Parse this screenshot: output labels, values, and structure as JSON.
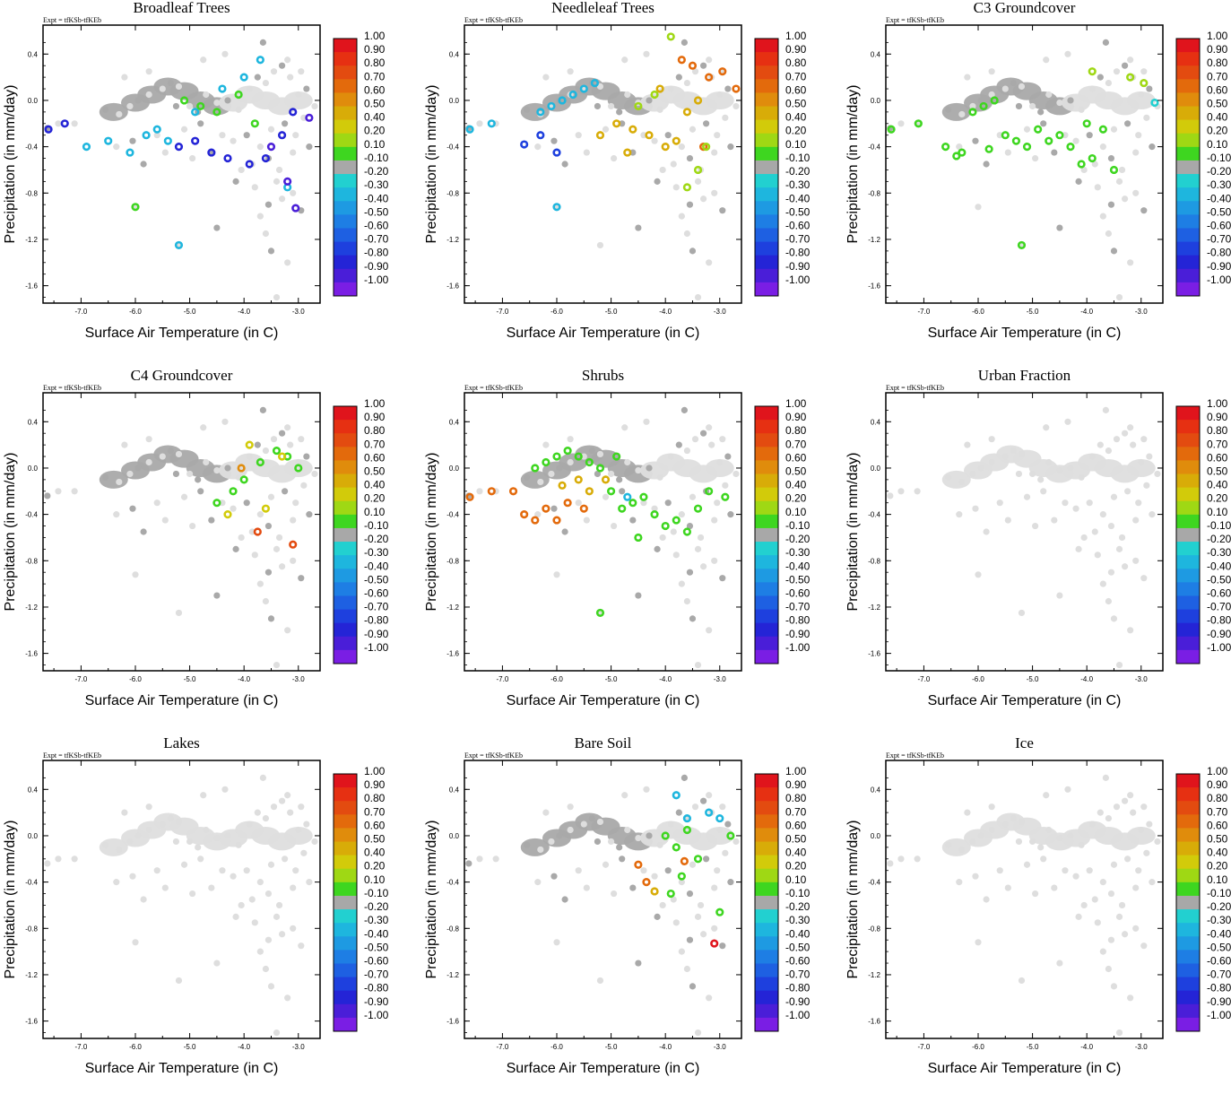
{
  "figure": {
    "expt_label": "Expt = tfKSb-tfKEb",
    "xlabel": "Surface Air Temperature (in C)",
    "ylabel": "Precipitation (in mm/day)"
  },
  "axes": {
    "xlim": [
      -7.7,
      -2.6
    ],
    "ylim": [
      -1.75,
      0.65
    ],
    "xticks": [
      -7.0,
      -6.0,
      -5.0,
      -4.0,
      -3.0
    ],
    "xtick_labels": [
      "-7.0",
      "-6.0",
      "-5.0",
      "-4.0",
      "-3.0"
    ],
    "yticks": [
      0.4,
      0.0,
      -0.4,
      -0.8,
      -1.2,
      -1.6
    ],
    "ytick_labels": [
      "0.4",
      "0.0",
      "-0.4",
      "-0.8",
      "-1.2",
      "-1.6"
    ]
  },
  "colorbar": {
    "labels": [
      "1.00",
      "0.90",
      "0.80",
      "0.70",
      "0.60",
      "0.50",
      "0.40",
      "0.20",
      "0.10",
      "-0.10",
      "-0.20",
      "-0.30",
      "-0.40",
      "-0.50",
      "-0.60",
      "-0.70",
      "-0.80",
      "-0.90",
      "-1.00"
    ],
    "colors": [
      "#e0141c",
      "#e63012",
      "#e34b10",
      "#e36a0c",
      "#e08c0c",
      "#d8ac08",
      "#d2cb0a",
      "#9fd814",
      "#3ed620",
      "#a8a8a8",
      "#22d0d0",
      "#1eb6de",
      "#1e9ae2",
      "#1e7ee4",
      "#1e60e2",
      "#1e40de",
      "#2424d6",
      "#4a1ed8",
      "#7a1ee4"
    ]
  },
  "base_points": {
    "description_free": true,
    "x": [
      -7.62,
      -7.42,
      -7.12,
      -6.55,
      -6.3,
      -6.1,
      -5.95,
      -5.75,
      -5.5,
      -5.35,
      -5.2,
      -5.0,
      -4.85,
      -4.7,
      -4.5,
      -4.3,
      -4.1,
      -3.9,
      -3.75,
      -3.6,
      -3.45,
      -3.3,
      -3.15,
      -3.0,
      -2.85,
      -2.7,
      -6.35,
      -6.05,
      -5.6,
      -5.1,
      -4.8,
      -4.4,
      -4.2,
      -3.95,
      -3.7,
      -3.5,
      -3.25,
      -3.05,
      -2.9,
      -5.85,
      -5.45,
      -4.95,
      -4.6,
      -4.05,
      -3.85,
      -3.55,
      -3.35,
      -3.1,
      -2.8,
      -6.2,
      -5.75,
      -5.25,
      -4.75,
      -4.35,
      -3.65,
      -3.2,
      -2.95,
      -4.15,
      -3.8,
      -3.4,
      -3.55,
      -3.3,
      -3.1,
      -2.95,
      -6.0,
      -5.2,
      -4.5,
      -3.7,
      -3.6,
      -3.5,
      -3.2,
      -3.4
    ],
    "y": [
      -0.24,
      -0.2,
      -0.2,
      -0.08,
      -0.12,
      -0.05,
      0.0,
      0.05,
      0.1,
      0.15,
      0.12,
      -0.05,
      -0.1,
      0.05,
      -0.02,
      0.0,
      -0.08,
      0.1,
      0.2,
      0.15,
      0.25,
      0.3,
      0.2,
      0.05,
      0.1,
      -0.05,
      -0.4,
      -0.35,
      -0.3,
      -0.25,
      -0.2,
      -0.3,
      -0.35,
      -0.3,
      -0.4,
      -0.25,
      -0.2,
      -0.3,
      -0.15,
      -0.55,
      -0.45,
      -0.5,
      -0.45,
      -0.6,
      -0.55,
      -0.5,
      -0.6,
      -0.45,
      -0.4,
      0.2,
      0.25,
      -0.05,
      0.35,
      0.4,
      0.5,
      0.35,
      0.25,
      -0.7,
      -0.75,
      -0.7,
      -0.9,
      -0.85,
      -0.8,
      -0.95,
      -0.92,
      -1.25,
      -1.1,
      -1.0,
      -1.15,
      -1.3,
      -1.4,
      -1.7
    ]
  },
  "chart_data": [
    {
      "type": "scatter",
      "title": "Broadleaf Trees",
      "xlabel": "Surface Air Temperature (in C)",
      "ylabel": "Precipitation (in mm/day)",
      "xlim": [
        -7.7,
        -2.6
      ],
      "ylim": [
        -1.75,
        0.65
      ],
      "series": [
        {
          "name": "-0.80",
          "color": "#2424d6",
          "x": [
            -7.6,
            -7.3,
            -5.2,
            -4.9,
            -4.6,
            -4.3,
            -3.9,
            -3.6,
            -3.3,
            -3.1
          ],
          "y": [
            -0.25,
            -0.2,
            -0.4,
            -0.35,
            -0.45,
            -0.5,
            -0.55,
            -0.5,
            -0.3,
            -0.1
          ]
        },
        {
          "name": "-0.30",
          "color": "#1eb6de",
          "x": [
            -6.9,
            -6.5,
            -6.1,
            -5.8,
            -5.6,
            -5.4,
            -5.2,
            -4.9,
            -4.4,
            -4.0,
            -3.7,
            -3.2
          ],
          "y": [
            -0.4,
            -0.35,
            -0.45,
            -0.3,
            -0.25,
            -0.35,
            -1.25,
            -0.1,
            0.1,
            0.2,
            0.35,
            -0.75
          ]
        },
        {
          "name": "0.10",
          "color": "#3ed620",
          "x": [
            -6.0,
            -5.1,
            -4.8,
            -4.5,
            -4.1,
            -3.8
          ],
          "y": [
            -0.92,
            0.0,
            -0.05,
            -0.1,
            0.05,
            -0.2
          ]
        },
        {
          "name": "-0.90",
          "color": "#4a1ed8",
          "x": [
            -3.5,
            -3.2,
            -3.05,
            -2.8
          ],
          "y": [
            -0.4,
            -0.7,
            -0.93,
            -0.15
          ]
        }
      ]
    },
    {
      "type": "scatter",
      "title": "Needleleaf Trees",
      "xlabel": "Surface Air Temperature (in C)",
      "ylabel": "Precipitation (in mm/day)",
      "xlim": [
        -7.7,
        -2.6
      ],
      "ylim": [
        -1.75,
        0.65
      ],
      "series": [
        {
          "name": "-0.30",
          "color": "#1eb6de",
          "x": [
            -7.6,
            -7.2,
            -6.3,
            -6.1,
            -5.9,
            -5.7,
            -5.5,
            -5.3,
            -6.0
          ],
          "y": [
            -0.25,
            -0.2,
            -0.1,
            -0.05,
            0.0,
            0.05,
            0.1,
            0.15,
            -0.92
          ]
        },
        {
          "name": "-0.70",
          "color": "#1e40de",
          "x": [
            -6.6,
            -6.3,
            -6.0
          ],
          "y": [
            -0.38,
            -0.3,
            -0.45
          ]
        },
        {
          "name": "0.50",
          "color": "#d8ac08",
          "x": [
            -5.2,
            -4.9,
            -4.6,
            -4.3,
            -4.0,
            -3.8,
            -3.6,
            -3.4,
            -4.7,
            -4.1
          ],
          "y": [
            -0.3,
            -0.2,
            -0.25,
            -0.3,
            -0.4,
            -0.35,
            -0.1,
            0.0,
            -0.45,
            0.1
          ]
        },
        {
          "name": "0.70",
          "color": "#e36a0c",
          "x": [
            -3.7,
            -3.5,
            -3.2,
            -2.95,
            -2.7,
            -3.3
          ],
          "y": [
            0.35,
            0.3,
            0.2,
            0.25,
            0.1,
            -0.4
          ]
        },
        {
          "name": "0.20",
          "color": "#9fd814",
          "x": [
            -4.5,
            -4.2,
            -3.9,
            -3.6,
            -3.4,
            -3.25
          ],
          "y": [
            -0.05,
            0.05,
            0.55,
            -0.75,
            -0.6,
            -0.4
          ]
        }
      ]
    },
    {
      "type": "scatter",
      "title": "C3 Groundcover",
      "xlabel": "Surface Air Temperature (in C)",
      "ylabel": "Precipitation (in mm/day)",
      "xlim": [
        -7.7,
        -2.6
      ],
      "ylim": [
        -1.75,
        0.65
      ],
      "series": [
        {
          "name": "0.10",
          "color": "#3ed620",
          "x": [
            -7.6,
            -7.1,
            -6.6,
            -6.3,
            -6.1,
            -5.9,
            -5.7,
            -5.5,
            -5.3,
            -5.1,
            -4.9,
            -4.7,
            -4.5,
            -4.3,
            -4.1,
            -3.9,
            -3.7,
            -3.5,
            -5.2,
            -6.4,
            -5.8,
            -4.0
          ],
          "y": [
            -0.25,
            -0.2,
            -0.4,
            -0.45,
            -0.1,
            -0.05,
            0.0,
            -0.3,
            -0.35,
            -0.4,
            -0.25,
            -0.35,
            -0.3,
            -0.4,
            -0.55,
            -0.5,
            -0.25,
            -0.6,
            -1.25,
            -0.48,
            -0.42,
            -0.2
          ]
        },
        {
          "name": "0.20",
          "color": "#9fd814",
          "x": [
            -3.9,
            -3.2,
            -2.95
          ],
          "y": [
            0.25,
            0.2,
            0.15
          ]
        },
        {
          "name": "-0.20",
          "color": "#22d0d0",
          "x": [
            -2.75
          ],
          "y": [
            -0.02
          ]
        }
      ]
    },
    {
      "type": "scatter",
      "title": "C4 Groundcover",
      "xlabel": "Surface Air Temperature (in C)",
      "ylabel": "Precipitation (in mm/day)",
      "xlim": [
        -7.7,
        -2.6
      ],
      "ylim": [
        -1.75,
        0.65
      ],
      "series": [
        {
          "name": "0.10",
          "color": "#3ed620",
          "x": [
            -4.5,
            -4.2,
            -4.0,
            -3.7,
            -3.4,
            -3.2,
            -3.0
          ],
          "y": [
            -0.3,
            -0.2,
            -0.1,
            0.05,
            0.15,
            0.1,
            0.0
          ]
        },
        {
          "name": "0.40",
          "color": "#d2cb0a",
          "x": [
            -4.3,
            -3.9,
            -3.6,
            -3.3
          ],
          "y": [
            -0.4,
            0.2,
            -0.35,
            0.1
          ]
        },
        {
          "name": "0.80",
          "color": "#e34b10",
          "x": [
            -3.75,
            -3.1
          ],
          "y": [
            -0.55,
            -0.66
          ]
        },
        {
          "name": "0.60",
          "color": "#e08c0c",
          "x": [
            -4.05
          ],
          "y": [
            0.0
          ]
        }
      ]
    },
    {
      "type": "scatter",
      "title": "Shrubs",
      "xlabel": "Surface Air Temperature (in C)",
      "ylabel": "Precipitation (in mm/day)",
      "xlim": [
        -7.7,
        -2.6
      ],
      "ylim": [
        -1.75,
        0.65
      ],
      "series": [
        {
          "name": "0.10",
          "color": "#3ed620",
          "x": [
            -6.4,
            -6.2,
            -6.0,
            -5.8,
            -5.6,
            -5.4,
            -5.2,
            -5.0,
            -4.8,
            -4.6,
            -4.4,
            -4.2,
            -4.0,
            -3.8,
            -3.6,
            -3.4,
            -3.2,
            -2.9,
            -5.2,
            -4.9,
            -4.5
          ],
          "y": [
            0.0,
            0.05,
            0.1,
            0.15,
            0.1,
            0.05,
            0.0,
            -0.2,
            -0.35,
            -0.3,
            -0.25,
            -0.4,
            -0.5,
            -0.45,
            -0.55,
            -0.35,
            -0.2,
            -0.25,
            -1.25,
            0.1,
            -0.6
          ]
        },
        {
          "name": "0.70",
          "color": "#e36a0c",
          "x": [
            -7.6,
            -7.2,
            -6.8,
            -6.6,
            -6.4,
            -6.2,
            -6.0,
            -5.8,
            -5.5
          ],
          "y": [
            -0.25,
            -0.2,
            -0.2,
            -0.4,
            -0.45,
            -0.35,
            -0.45,
            -0.3,
            -0.35
          ]
        },
        {
          "name": "0.50",
          "color": "#d8ac08",
          "x": [
            -5.9,
            -5.6,
            -5.4,
            -5.1
          ],
          "y": [
            -0.15,
            -0.1,
            -0.2,
            -0.1
          ]
        },
        {
          "name": "-0.30",
          "color": "#1eb6de",
          "x": [
            -4.7
          ],
          "y": [
            -0.25
          ]
        }
      ]
    },
    {
      "type": "scatter",
      "title": "Urban Fraction",
      "xlabel": "Surface Air Temperature (in C)",
      "ylabel": "Precipitation (in mm/day)",
      "xlim": [
        -7.7,
        -2.6
      ],
      "ylim": [
        -1.75,
        0.65
      ],
      "series": []
    },
    {
      "type": "scatter",
      "title": "Lakes",
      "xlabel": "Surface Air Temperature (in C)",
      "ylabel": "Precipitation (in mm/day)",
      "xlim": [
        -7.7,
        -2.6
      ],
      "ylim": [
        -1.75,
        0.65
      ],
      "series": []
    },
    {
      "type": "scatter",
      "title": "Bare Soil",
      "xlabel": "Surface Air Temperature (in C)",
      "ylabel": "Precipitation (in mm/day)",
      "xlim": [
        -7.7,
        -2.6
      ],
      "ylim": [
        -1.75,
        0.65
      ],
      "series": [
        {
          "name": "-0.30",
          "color": "#1eb6de",
          "x": [
            -3.8,
            -3.6,
            -3.2,
            -3.0
          ],
          "y": [
            0.35,
            0.15,
            0.2,
            0.15
          ]
        },
        {
          "name": "0.10",
          "color": "#3ed620",
          "x": [
            -4.0,
            -3.8,
            -3.6,
            -3.4,
            -3.9,
            -3.7,
            -2.8,
            -3.0
          ],
          "y": [
            0.0,
            -0.1,
            0.05,
            -0.2,
            -0.5,
            -0.35,
            0.0,
            -0.66
          ]
        },
        {
          "name": "0.70",
          "color": "#e36a0c",
          "x": [
            -4.5,
            -4.35,
            -3.65
          ],
          "y": [
            -0.25,
            -0.4,
            -0.22
          ]
        },
        {
          "name": "0.50",
          "color": "#d8ac08",
          "x": [
            -4.2
          ],
          "y": [
            -0.48
          ]
        },
        {
          "name": "1.00",
          "color": "#e0141c",
          "x": [
            -3.1
          ],
          "y": [
            -0.93
          ]
        }
      ]
    },
    {
      "type": "scatter",
      "title": "Ice",
      "xlabel": "Surface Air Temperature (in C)",
      "ylabel": "Precipitation (in mm/day)",
      "xlim": [
        -7.7,
        -2.6
      ],
      "ylim": [
        -1.75,
        0.65
      ],
      "series": []
    }
  ]
}
